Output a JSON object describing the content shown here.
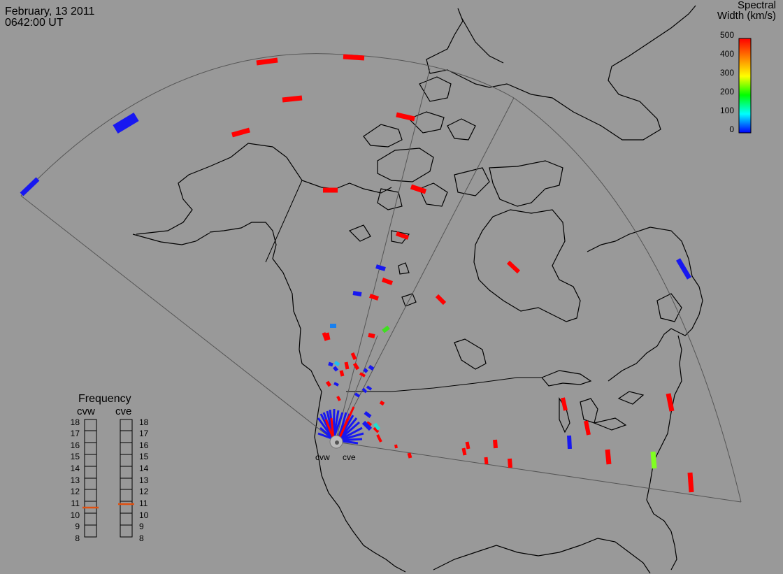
{
  "header": {
    "date": "February, 13 2011",
    "time": "0642:00 UT"
  },
  "colorbar": {
    "title_line1": "Spectral",
    "title_line2": "Width (km/s)",
    "ticks": [
      "500",
      "400",
      "300",
      "200",
      "100",
      "0"
    ]
  },
  "frequency": {
    "title": "Frequency",
    "radars": [
      "cvw",
      "cve"
    ],
    "scale": [
      "18",
      "17",
      "16",
      "15",
      "14",
      "13",
      "12",
      "11",
      "10",
      "9",
      "8"
    ],
    "cvw_value": 10.5,
    "cve_value": 10.8
  },
  "sites": {
    "cvw": "cvw",
    "cve": "cve"
  },
  "colors": {
    "background": "#999999",
    "high_width": "#ff0000",
    "low_width": "#1818f0",
    "mid_width": "#40e020",
    "marker": "#e05010"
  }
}
